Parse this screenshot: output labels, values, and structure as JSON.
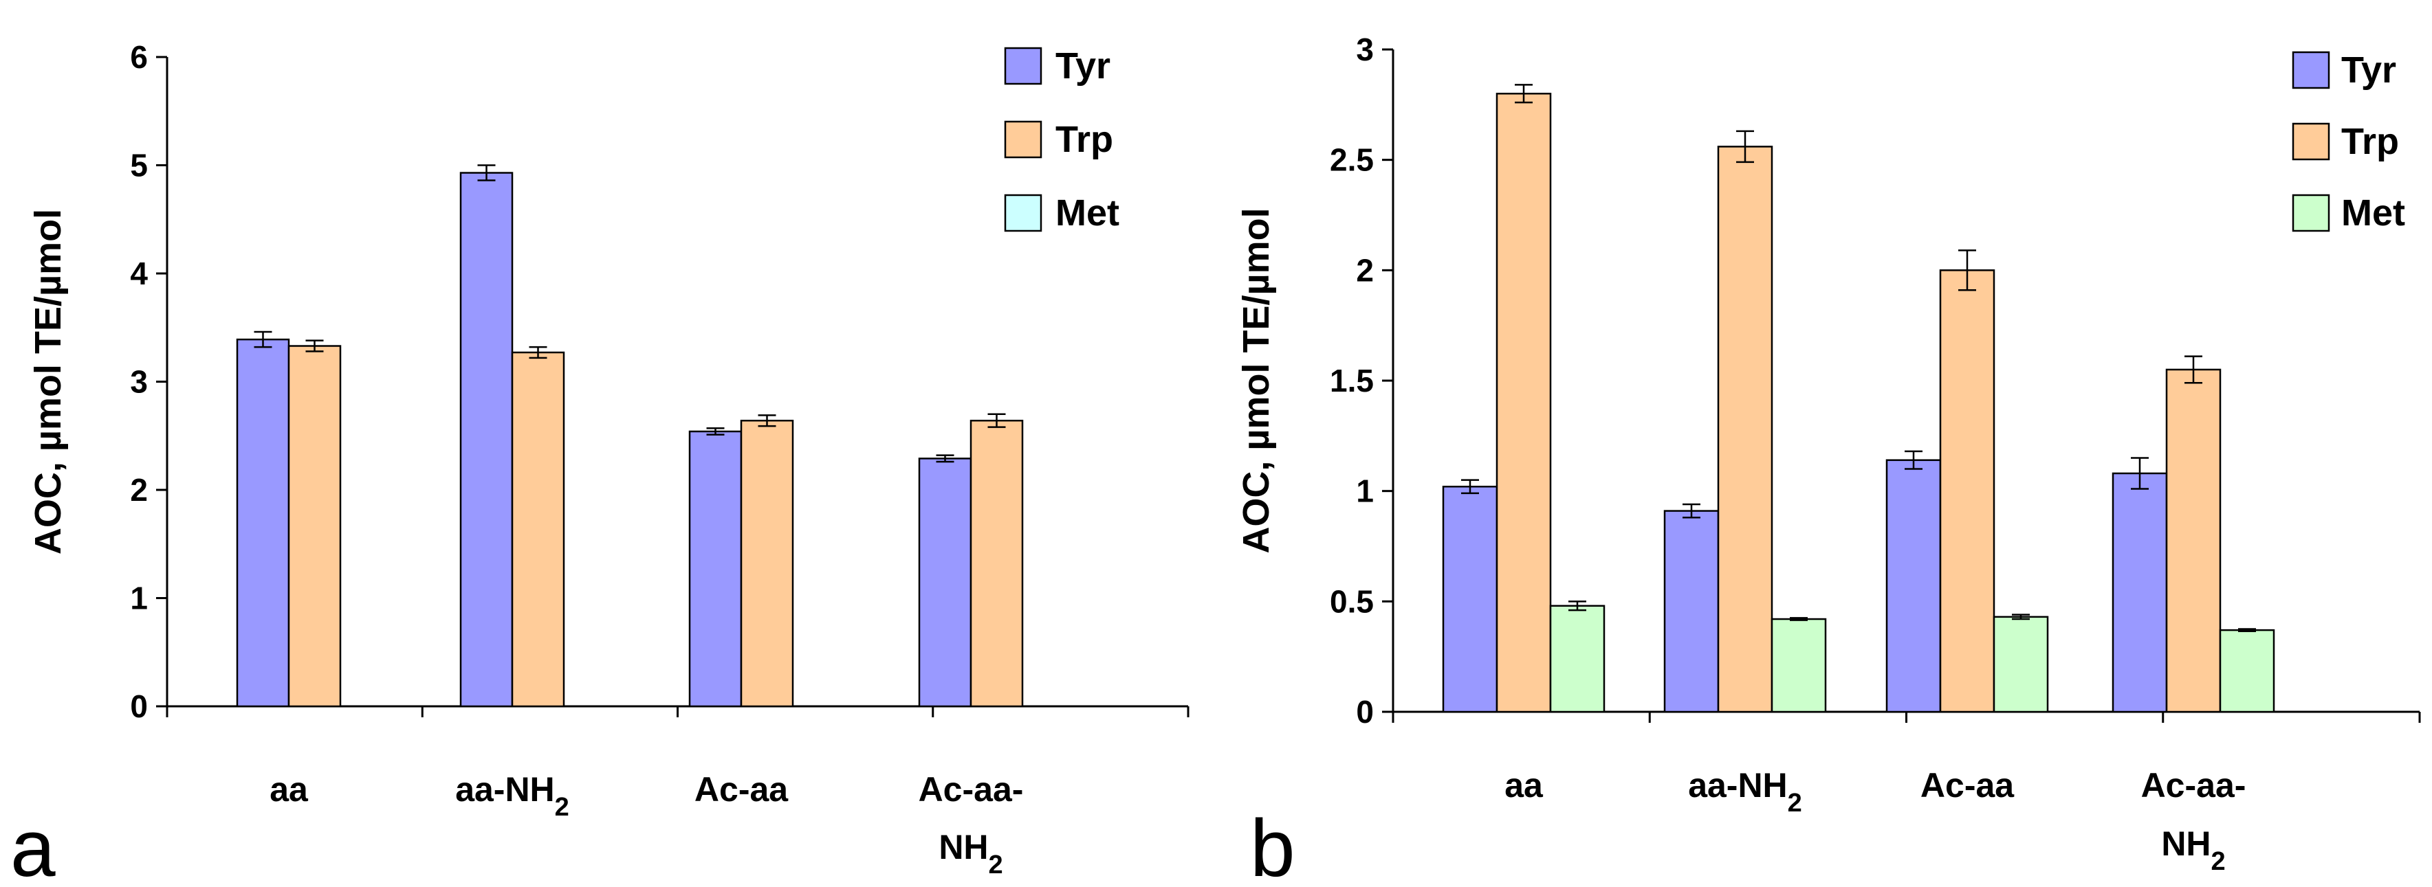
{
  "chart_data": [
    {
      "type": "bar",
      "panel_label": "a",
      "title": "",
      "xlabel": "",
      "ylabel": "AOC, µmol TE/µmol",
      "ylim": [
        0,
        6
      ],
      "yticks": [
        "0",
        "1",
        "2",
        "3",
        "4",
        "5",
        "6"
      ],
      "categories": [
        {
          "main": "aa",
          "sub": ""
        },
        {
          "main": "aa-NH",
          "sub": "2"
        },
        {
          "main": "Ac-aa",
          "sub": ""
        },
        {
          "main": "Ac-aa-",
          "line2": "NH",
          "sub": "2"
        }
      ],
      "legend_position": "top-right",
      "series": [
        {
          "name": "Tyr",
          "color": "#9999ff",
          "values": [
            3.39,
            4.93,
            2.54,
            2.29
          ],
          "errors": [
            0.07,
            0.07,
            0.03,
            0.03
          ]
        },
        {
          "name": "Trp",
          "color": "#ffcc99",
          "values": [
            3.33,
            3.27,
            2.64,
            2.64
          ],
          "errors": [
            0.05,
            0.05,
            0.05,
            0.06
          ]
        },
        {
          "name": "Met",
          "color": "#ccffff",
          "values": [
            null,
            null,
            null,
            null
          ],
          "errors": [
            null,
            null,
            null,
            null
          ]
        }
      ]
    },
    {
      "type": "bar",
      "panel_label": "b",
      "title": "",
      "xlabel": "",
      "ylabel": "AOC,  µmol TE/µmol",
      "ylim": [
        0,
        3
      ],
      "yticks": [
        "0",
        "0.5",
        "1",
        "1.5",
        "2",
        "2.5",
        "3"
      ],
      "categories": [
        {
          "main": "aa",
          "sub": ""
        },
        {
          "main": "aa-NH",
          "sub": "2"
        },
        {
          "main": "Ac-aa",
          "sub": ""
        },
        {
          "main": "Ac-aa-",
          "line2": "NH",
          "sub": "2"
        }
      ],
      "legend_position": "top-right",
      "series": [
        {
          "name": "Tyr",
          "color": "#9999ff",
          "values": [
            1.02,
            0.91,
            1.14,
            1.08
          ],
          "errors": [
            0.03,
            0.03,
            0.04,
            0.07
          ]
        },
        {
          "name": "Trp",
          "color": "#ffcc99",
          "values": [
            2.8,
            2.56,
            2.0,
            1.55
          ],
          "errors": [
            0.04,
            0.07,
            0.09,
            0.06
          ]
        },
        {
          "name": "Met",
          "color": "#ccffcc",
          "values": [
            0.48,
            0.42,
            0.43,
            0.37
          ],
          "errors": [
            0.02,
            0.005,
            0.01,
            0.005
          ]
        }
      ]
    }
  ]
}
